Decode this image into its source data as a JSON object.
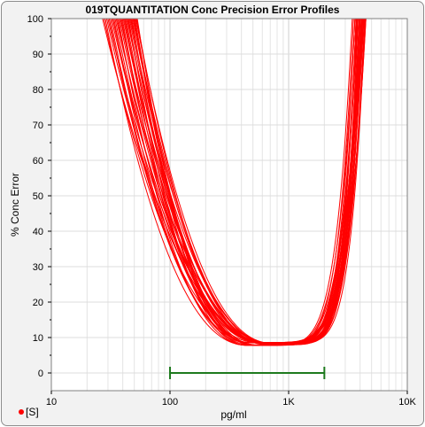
{
  "chart_data": {
    "type": "line",
    "title": "019TQUANTITATION Conc Precision Error Profiles",
    "xlabel": "pg/ml",
    "ylabel": "% Conc Error",
    "x_scale": "log",
    "xlim": [
      10,
      10000
    ],
    "ylim": [
      -5,
      100
    ],
    "x_ticks": [
      {
        "value": 10,
        "label": "10"
      },
      {
        "value": 100,
        "label": "100"
      },
      {
        "value": 1000,
        "label": "1K"
      },
      {
        "value": 10000,
        "label": "10K"
      }
    ],
    "y_ticks": [
      0,
      10,
      20,
      30,
      40,
      50,
      60,
      70,
      80,
      90,
      100
    ],
    "grid": true,
    "legend_position": "bottom-left",
    "legend": [
      {
        "label": "[S]",
        "color": "#ff0000"
      }
    ],
    "curve_color": "#ff0000",
    "range_bar": {
      "x_min": 100,
      "x_max": 2000,
      "y": 0,
      "color": "#1e7a1e"
    },
    "profile_family": {
      "count": 36,
      "min_error": {
        "low": 7.8,
        "high": 8.6
      },
      "min_location": {
        "low": 450,
        "high": 750
      },
      "left_reach_100": {
        "low": 27,
        "high": 53
      },
      "right_reach_100": {
        "low": 3400,
        "high": 4600
      }
    }
  }
}
